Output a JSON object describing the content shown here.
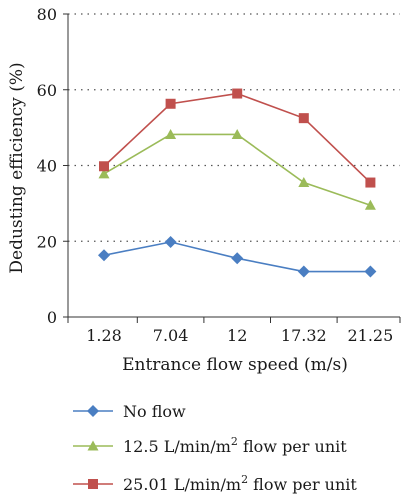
{
  "chart_data": {
    "type": "line",
    "title": "",
    "xlabel": "Entrance flow speed (m/s)",
    "ylabel": "Dedusting efficiency (%)",
    "categories": [
      "1.28",
      "7.04",
      "12",
      "17.32",
      "21.25"
    ],
    "ylim": [
      0,
      80
    ],
    "yticks": [
      0,
      20,
      40,
      60,
      80
    ],
    "grid": "horizontal-dotted",
    "legend_position": "bottom",
    "series": [
      {
        "name": "No flow",
        "marker": "diamond",
        "color": "#4a7ec2",
        "values": [
          16.3,
          19.8,
          15.5,
          12.0,
          12.0
        ]
      },
      {
        "name_base": "12.5 L/min/m",
        "name_sup": "2",
        "name_tail": " flow per unit",
        "marker": "triangle",
        "color": "#9bbb59",
        "values": [
          37.8,
          48.2,
          48.2,
          35.5,
          29.5
        ]
      },
      {
        "name_base": "25.01 L/min/m",
        "name_sup": "2",
        "name_tail": " flow per unit",
        "marker": "square",
        "color": "#c0504d",
        "values": [
          39.8,
          56.3,
          59.0,
          52.5,
          35.5
        ]
      }
    ]
  }
}
